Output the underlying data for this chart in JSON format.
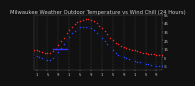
{
  "title": "Milwaukee Weather Outdoor Temperature vs Wind Chill (24 Hours)",
  "title_fontsize": 3.8,
  "background_color": "#111111",
  "plot_bg_color": "#111111",
  "grid_color": "#555555",
  "text_color": "#cccccc",
  "hours": [
    0,
    1,
    2,
    3,
    4,
    5,
    6,
    7,
    8,
    9,
    10,
    11,
    12,
    13,
    14,
    15,
    16,
    17,
    18,
    19,
    20,
    21,
    22,
    23,
    24,
    25,
    26,
    27,
    28,
    29,
    30,
    31,
    32,
    33,
    34,
    35,
    36,
    37,
    38,
    39,
    40,
    41,
    42,
    43,
    44,
    45,
    46,
    47
  ],
  "temp": [
    14,
    13,
    12,
    11,
    10,
    10,
    10,
    12,
    15,
    19,
    24,
    28,
    33,
    37,
    41,
    44,
    46,
    48,
    49,
    50,
    50,
    49,
    47,
    45,
    42,
    39,
    36,
    32,
    28,
    25,
    22,
    20,
    18,
    17,
    16,
    15,
    14,
    13,
    12,
    11,
    10,
    10,
    9,
    9,
    9,
    8,
    8,
    8
  ],
  "windchill": [
    7,
    6,
    5,
    4,
    3,
    2,
    2,
    4,
    7,
    11,
    16,
    20,
    25,
    29,
    33,
    36,
    38,
    40,
    41,
    41,
    40,
    39,
    37,
    34,
    31,
    28,
    24,
    20,
    16,
    13,
    10,
    8,
    6,
    5,
    4,
    3,
    2,
    1,
    0,
    -1,
    -2,
    -3,
    -3,
    -4,
    -4,
    -5,
    -5,
    -5
  ],
  "temp_color": "#ff2222",
  "windchill_color": "#2244ff",
  "black_dot_color": "#000000",
  "ylim": [
    -10,
    55
  ],
  "yticks": [
    55,
    45,
    35,
    25,
    15,
    5,
    -5
  ],
  "ytick_labels": [
    "55",
    "45",
    "35",
    "25",
    "15",
    "5",
    "-5"
  ],
  "xlim": [
    0,
    47
  ],
  "xtick_positions": [
    1,
    5,
    9,
    13,
    17,
    21,
    25,
    29,
    33,
    37,
    41,
    45
  ],
  "xtick_labels": [
    "1",
    "5",
    "9",
    "1",
    "5",
    "9",
    "1",
    "5",
    "9",
    "1",
    "5",
    "9"
  ],
  "vgrid_positions": [
    1,
    5,
    9,
    13,
    17,
    21,
    25,
    29,
    33,
    37,
    41,
    45
  ],
  "hline_x1": 7,
  "hline_x2": 12,
  "hline_y": 15,
  "hline_color": "#3333ff"
}
